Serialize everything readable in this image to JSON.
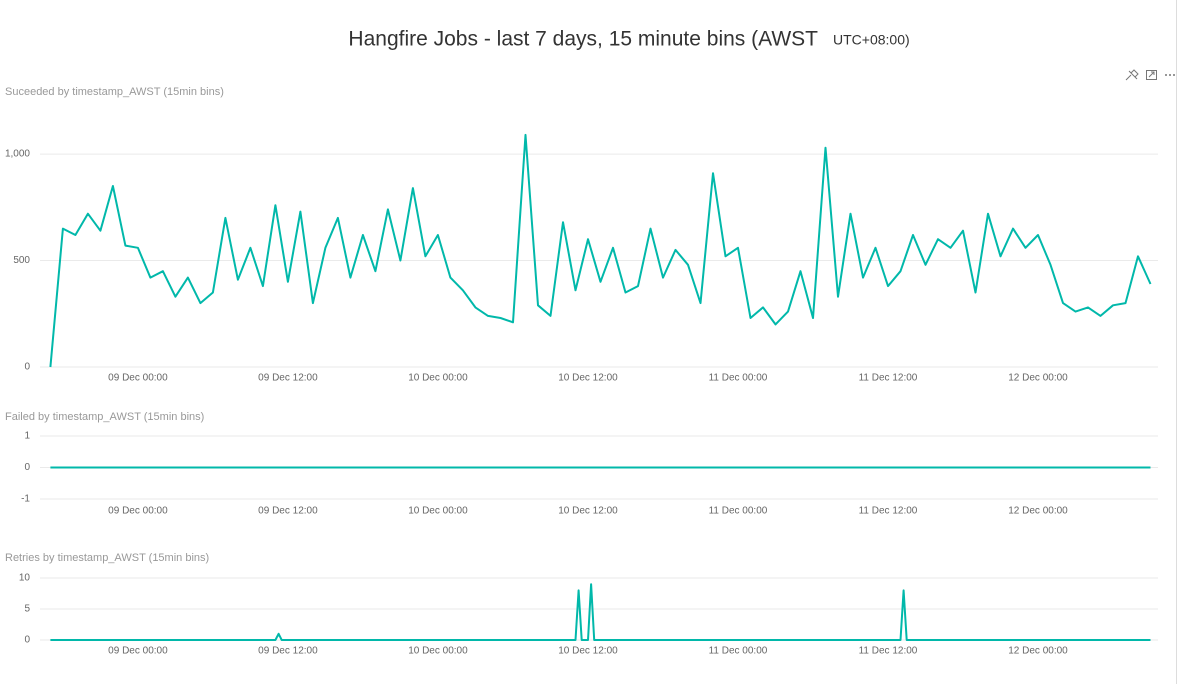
{
  "header": {
    "title": "Hangfire Jobs - last 7 days, 15 minute bins (AWST",
    "subtitle": "UTC+08:00)"
  },
  "chart_data": [
    {
      "type": "line",
      "title": "Suceeded by timestamp_AWST (15min bins)",
      "color": "#01b8aa",
      "x": [
        "08 Dec 17:00",
        "08 Dec 18:00",
        "08 Dec 19:00",
        "08 Dec 20:00",
        "08 Dec 21:00",
        "08 Dec 22:00",
        "08 Dec 23:00",
        "09 Dec 00:00",
        "09 Dec 01:00",
        "09 Dec 02:00",
        "09 Dec 03:00",
        "09 Dec 04:00",
        "09 Dec 05:00",
        "09 Dec 06:00",
        "09 Dec 07:00",
        "09 Dec 08:00",
        "09 Dec 09:00",
        "09 Dec 10:00",
        "09 Dec 11:00",
        "09 Dec 12:00",
        "09 Dec 13:00",
        "09 Dec 14:00",
        "09 Dec 15:00",
        "09 Dec 16:00",
        "09 Dec 17:00",
        "09 Dec 18:00",
        "09 Dec 19:00",
        "09 Dec 20:00",
        "09 Dec 21:00",
        "09 Dec 22:00",
        "09 Dec 23:00",
        "10 Dec 00:00",
        "10 Dec 01:00",
        "10 Dec 02:00",
        "10 Dec 03:00",
        "10 Dec 04:00",
        "10 Dec 05:00",
        "10 Dec 06:00",
        "10 Dec 07:00",
        "10 Dec 08:00",
        "10 Dec 09:00",
        "10 Dec 10:00",
        "10 Dec 11:00",
        "10 Dec 12:00",
        "10 Dec 13:00",
        "10 Dec 14:00",
        "10 Dec 15:00",
        "10 Dec 16:00",
        "10 Dec 17:00",
        "10 Dec 18:00",
        "10 Dec 19:00",
        "10 Dec 20:00",
        "10 Dec 21:00",
        "10 Dec 22:00",
        "10 Dec 23:00",
        "11 Dec 00:00",
        "11 Dec 01:00",
        "11 Dec 02:00",
        "11 Dec 03:00",
        "11 Dec 04:00",
        "11 Dec 05:00",
        "11 Dec 06:00",
        "11 Dec 07:00",
        "11 Dec 08:00",
        "11 Dec 09:00",
        "11 Dec 10:00",
        "11 Dec 11:00",
        "11 Dec 12:00",
        "11 Dec 13:00",
        "11 Dec 14:00",
        "11 Dec 15:00",
        "11 Dec 16:00",
        "11 Dec 17:00",
        "11 Dec 18:00",
        "11 Dec 19:00",
        "11 Dec 20:00",
        "11 Dec 21:00",
        "11 Dec 22:00",
        "11 Dec 23:00",
        "12 Dec 00:00",
        "12 Dec 01:00",
        "12 Dec 02:00",
        "12 Dec 03:00",
        "12 Dec 04:00",
        "12 Dec 05:00",
        "12 Dec 06:00",
        "12 Dec 07:00",
        "12 Dec 08:00",
        "12 Dec 09:00"
      ],
      "values": [
        0,
        650,
        620,
        720,
        640,
        850,
        570,
        560,
        420,
        450,
        330,
        420,
        300,
        350,
        700,
        410,
        560,
        380,
        760,
        400,
        730,
        300,
        560,
        700,
        420,
        620,
        450,
        740,
        500,
        840,
        520,
        620,
        420,
        360,
        280,
        240,
        230,
        210,
        1090,
        290,
        240,
        680,
        360,
        600,
        400,
        560,
        350,
        380,
        650,
        420,
        550,
        480,
        300,
        910,
        520,
        560,
        230,
        280,
        200,
        260,
        450,
        230,
        1030,
        330,
        720,
        420,
        560,
        380,
        450,
        620,
        480,
        600,
        560,
        640,
        350,
        720,
        520,
        650,
        560,
        620,
        480,
        300,
        260,
        280,
        240,
        290,
        300,
        520,
        390
      ],
      "xlim": [
        "08 Dec 16:10",
        "12 Dec 09:36"
      ],
      "xticks": [
        "09 Dec 00:00",
        "09 Dec 12:00",
        "10 Dec 00:00",
        "10 Dec 12:00",
        "11 Dec 00:00",
        "11 Dec 12:00",
        "12 Dec 00:00"
      ],
      "ylim": [
        0,
        1160
      ],
      "yticks": [
        0,
        500,
        {
          "value": 1000,
          "label": "1,000"
        }
      ],
      "grid": true
    },
    {
      "type": "line",
      "title": "Failed by timestamp_AWST (15min bins)",
      "color": "#01b8aa",
      "x": [
        "08 Dec 17:00",
        "12 Dec 09:00"
      ],
      "values": [
        0,
        0
      ],
      "xlim": [
        "08 Dec 16:10",
        "12 Dec 09:36"
      ],
      "xticks": [
        "09 Dec 00:00",
        "09 Dec 12:00",
        "10 Dec 00:00",
        "10 Dec 12:00",
        "11 Dec 00:00",
        "11 Dec 12:00",
        "12 Dec 00:00"
      ],
      "ylim": [
        -1,
        1
      ],
      "yticks": [
        -1,
        0,
        1
      ],
      "grid": true
    },
    {
      "type": "line",
      "title": "Retries by timestamp_AWST (15min bins)",
      "color": "#01b8aa",
      "x": [
        "08 Dec 17:00",
        "09 Dec 11:00",
        "09 Dec 11:15",
        "09 Dec 11:30",
        "10 Dec 11:00",
        "10 Dec 11:15",
        "10 Dec 11:30",
        "10 Dec 12:00",
        "10 Dec 12:15",
        "10 Dec 12:30",
        "11 Dec 13:00",
        "11 Dec 13:15",
        "11 Dec 13:30",
        "12 Dec 09:00"
      ],
      "values": [
        0,
        0,
        1,
        0,
        0,
        8,
        0,
        0,
        9,
        0,
        0,
        8,
        0,
        0
      ],
      "xlim": [
        "08 Dec 16:10",
        "12 Dec 09:36"
      ],
      "xticks": [
        "09 Dec 00:00",
        "09 Dec 12:00",
        "10 Dec 00:00",
        "10 Dec 12:00",
        "11 Dec 00:00",
        "11 Dec 12:00",
        "12 Dec 00:00"
      ],
      "ylim": [
        0,
        10
      ],
      "yticks": [
        0,
        5,
        10
      ],
      "grid": true
    }
  ]
}
